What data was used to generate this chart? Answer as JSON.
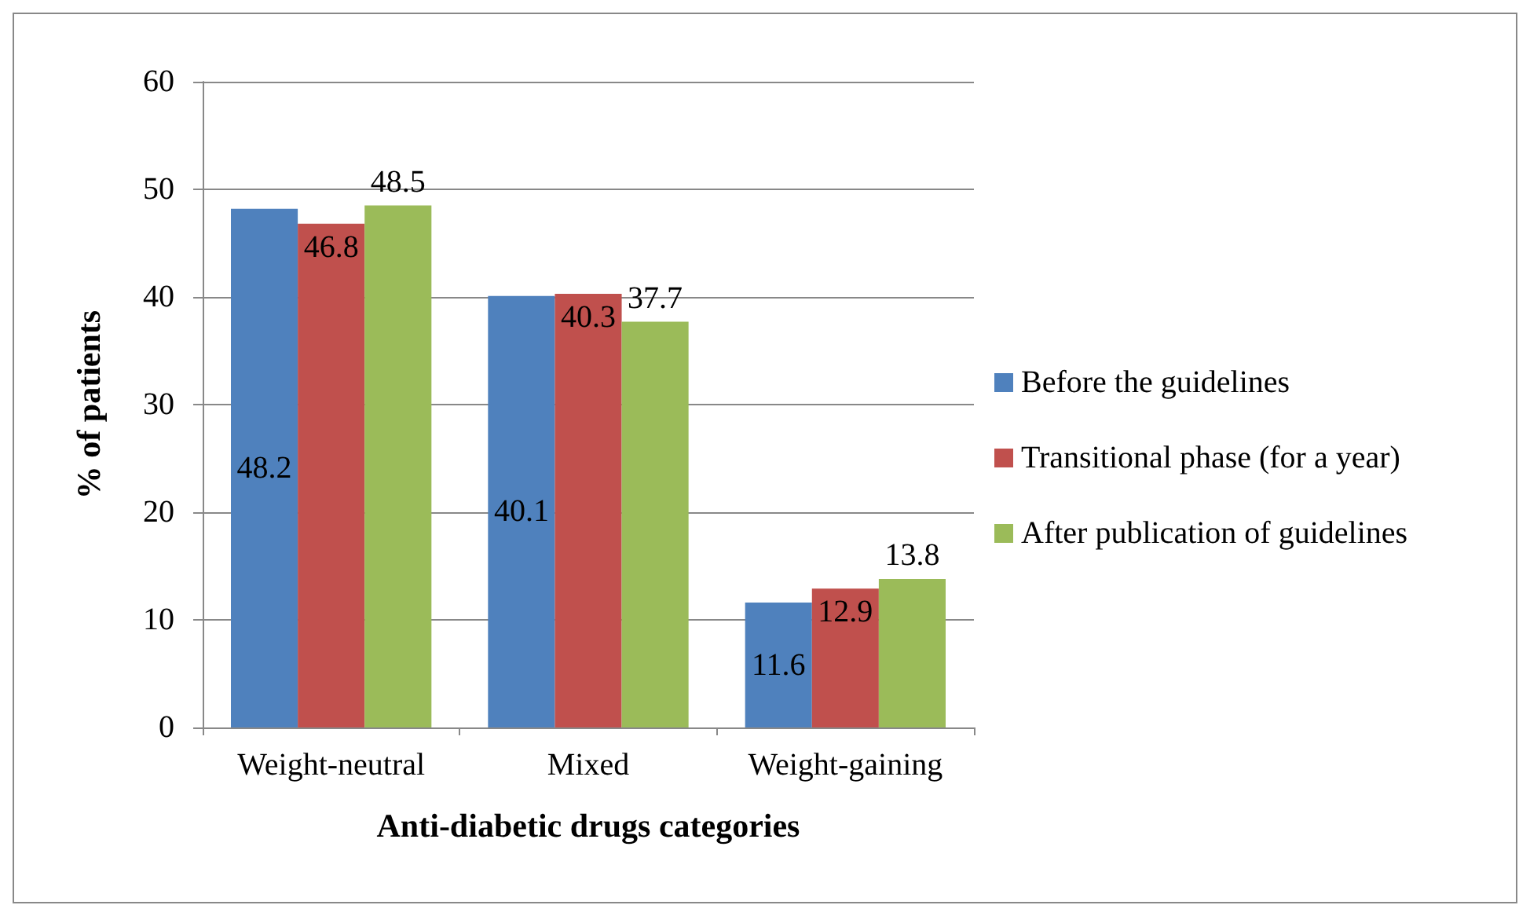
{
  "chart_data": {
    "type": "bar",
    "xlabel": "Anti-diabetic drugs categories",
    "ylabel": "% of patients",
    "categories": [
      "Weight-neutral",
      "Mixed",
      "Weight-gaining"
    ],
    "series": [
      {
        "name": "Before the guidelines",
        "color": "#4f81bd",
        "values": [
          48.2,
          40.1,
          11.6
        ]
      },
      {
        "name": "Transitional phase (for a year)",
        "color": "#c0504d",
        "values": [
          46.8,
          40.3,
          12.9
        ]
      },
      {
        "name": "After publication of guidelines",
        "color": "#9bbb59",
        "values": [
          48.5,
          37.7,
          13.8
        ]
      }
    ],
    "ylim": [
      0,
      60
    ],
    "yticks": [
      0,
      10,
      20,
      30,
      40,
      50,
      60
    ],
    "grid": "y",
    "legend": "right",
    "data_labels": true
  }
}
